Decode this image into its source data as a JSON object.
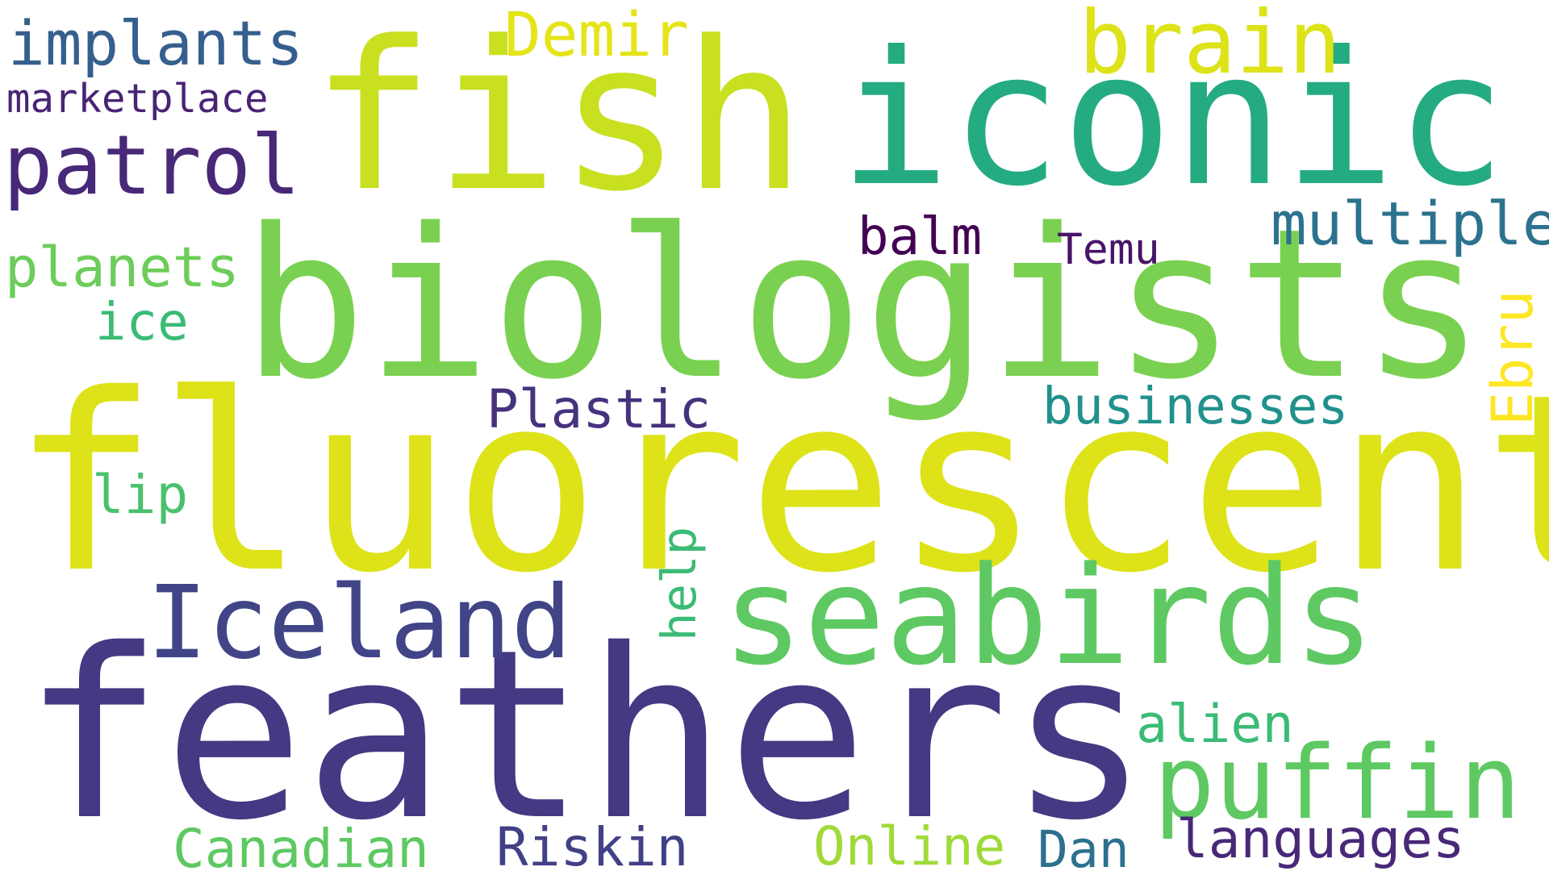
{
  "words": {
    "fluorescent": {
      "text": "fluorescent",
      "color": "#dde318"
    },
    "biologists": {
      "text": "biologists",
      "color": "#7ad151"
    },
    "feathers": {
      "text": "feathers",
      "color": "#443983"
    },
    "fish": {
      "text": "fish",
      "color": "#c8e020"
    },
    "iconic": {
      "text": "iconic",
      "color": "#25ab82"
    },
    "seabirds": {
      "text": "seabirds",
      "color": "#5ec962"
    },
    "puffin": {
      "text": "puffin",
      "color": "#5ec962"
    },
    "Iceland": {
      "text": "Iceland",
      "color": "#414487"
    },
    "brain": {
      "text": "brain",
      "color": "#dde318"
    },
    "patrol": {
      "text": "patrol",
      "color": "#482878"
    },
    "implants": {
      "text": "implants",
      "color": "#355f8d"
    },
    "marketplace": {
      "text": "marketplace",
      "color": "#482475"
    },
    "Demir": {
      "text": "Demir",
      "color": "#e5e419"
    },
    "multiple": {
      "text": "multiple",
      "color": "#2c728e"
    },
    "balm": {
      "text": "balm",
      "color": "#440154"
    },
    "Temu": {
      "text": "Temu",
      "color": "#481467"
    },
    "planets": {
      "text": "planets",
      "color": "#6ccd5a"
    },
    "ice": {
      "text": "ice",
      "color": "#3bbb75"
    },
    "Plastic": {
      "text": "Plastic",
      "color": "#46327e"
    },
    "businesses": {
      "text": "businesses",
      "color": "#21918c"
    },
    "Ebru": {
      "text": "Ebru",
      "color": "#fde725"
    },
    "lip": {
      "text": "lip",
      "color": "#4ac16d"
    },
    "help": {
      "text": "help",
      "color": "#3bbb75"
    },
    "alien": {
      "text": "alien",
      "color": "#3bbb75"
    },
    "Canadian": {
      "text": "Canadian",
      "color": "#5ec962"
    },
    "Riskin": {
      "text": "Riskin",
      "color": "#424086"
    },
    "Online": {
      "text": "Online",
      "color": "#a0da39"
    },
    "Dan": {
      "text": "Dan",
      "color": "#2d708e"
    },
    "languages": {
      "text": "languages",
      "color": "#482878"
    }
  }
}
